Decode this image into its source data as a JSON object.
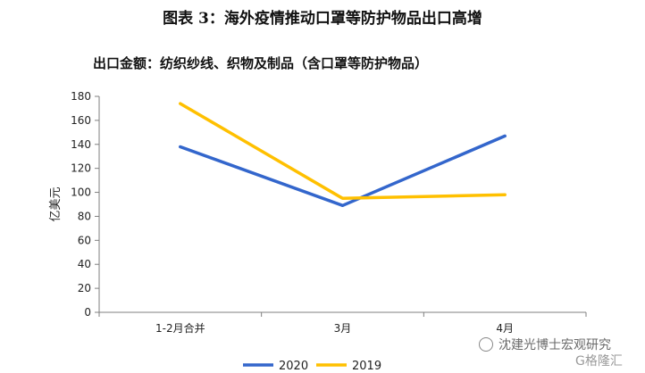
{
  "header": {
    "title": "图表 3：海外疫情推动口罩等防护物品出口高增",
    "subtitle": "出口金额：纺织纱线、织物及制品（含口罩等防护物品）"
  },
  "watermark": {
    "text": "沈建光博士宏观研究",
    "logo_text": "G格隆汇"
  },
  "chart_data": {
    "type": "line",
    "categories": [
      "1-2月合并",
      "3月",
      "4月"
    ],
    "series": [
      {
        "name": "2020",
        "color": "#3366CC",
        "values": [
          138,
          89,
          147
        ]
      },
      {
        "name": "2019",
        "color": "#FFC000",
        "values": [
          174,
          95,
          98
        ]
      }
    ],
    "ylabel": "亿美元",
    "xlabel": "",
    "ylim": [
      0,
      180
    ],
    "yticks": [
      0,
      20,
      40,
      60,
      80,
      100,
      120,
      140,
      160,
      180
    ],
    "grid": false,
    "legend_position": "bottom"
  }
}
